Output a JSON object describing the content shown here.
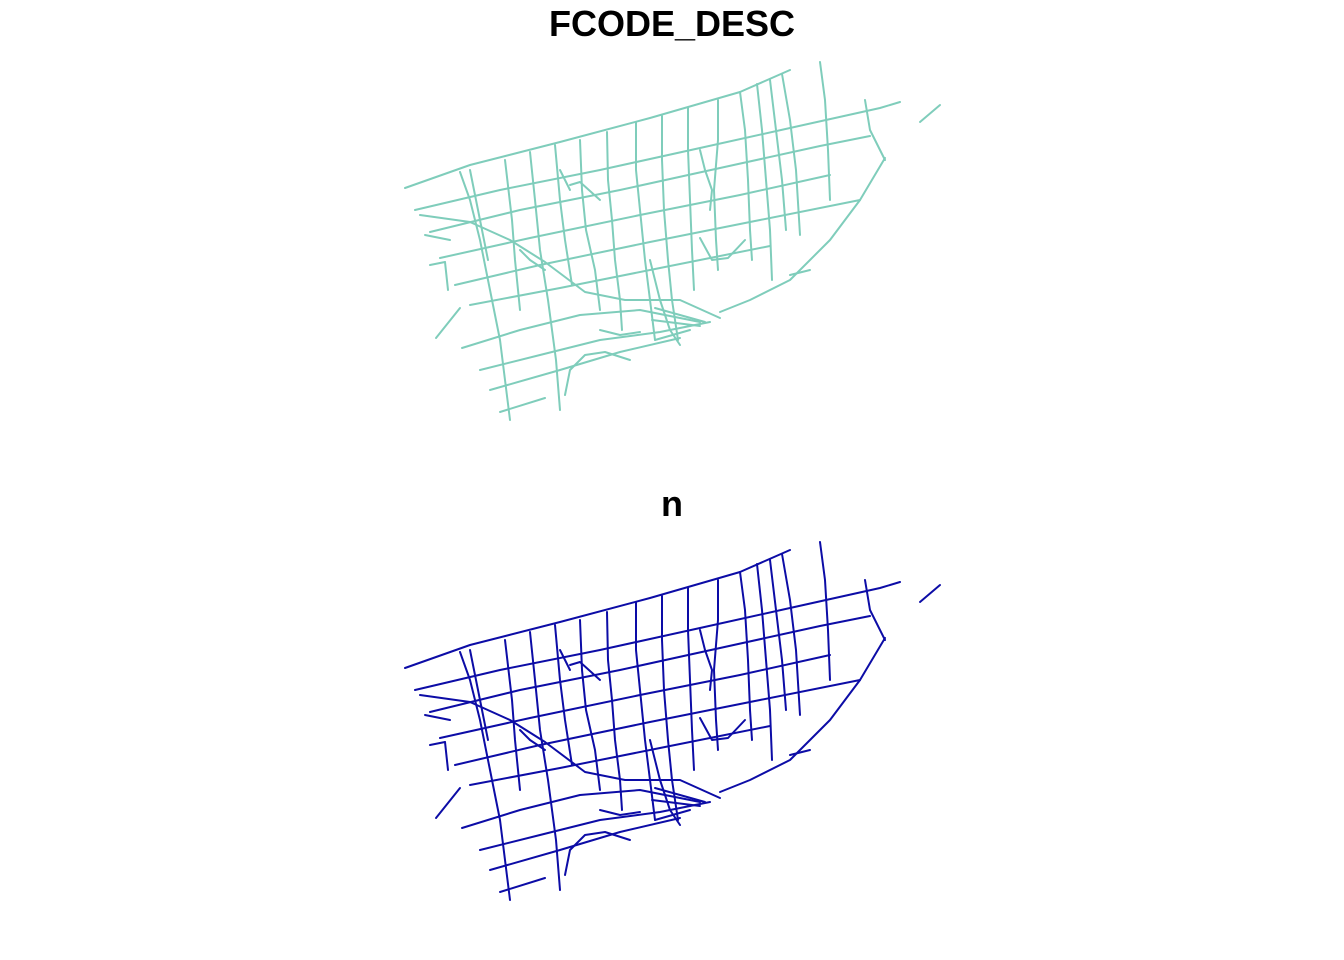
{
  "panels": [
    {
      "title": "FCODE_DESC",
      "line_color": "#7fcdbb"
    },
    {
      "title": "n",
      "line_color": "#0c0ca6"
    }
  ]
}
